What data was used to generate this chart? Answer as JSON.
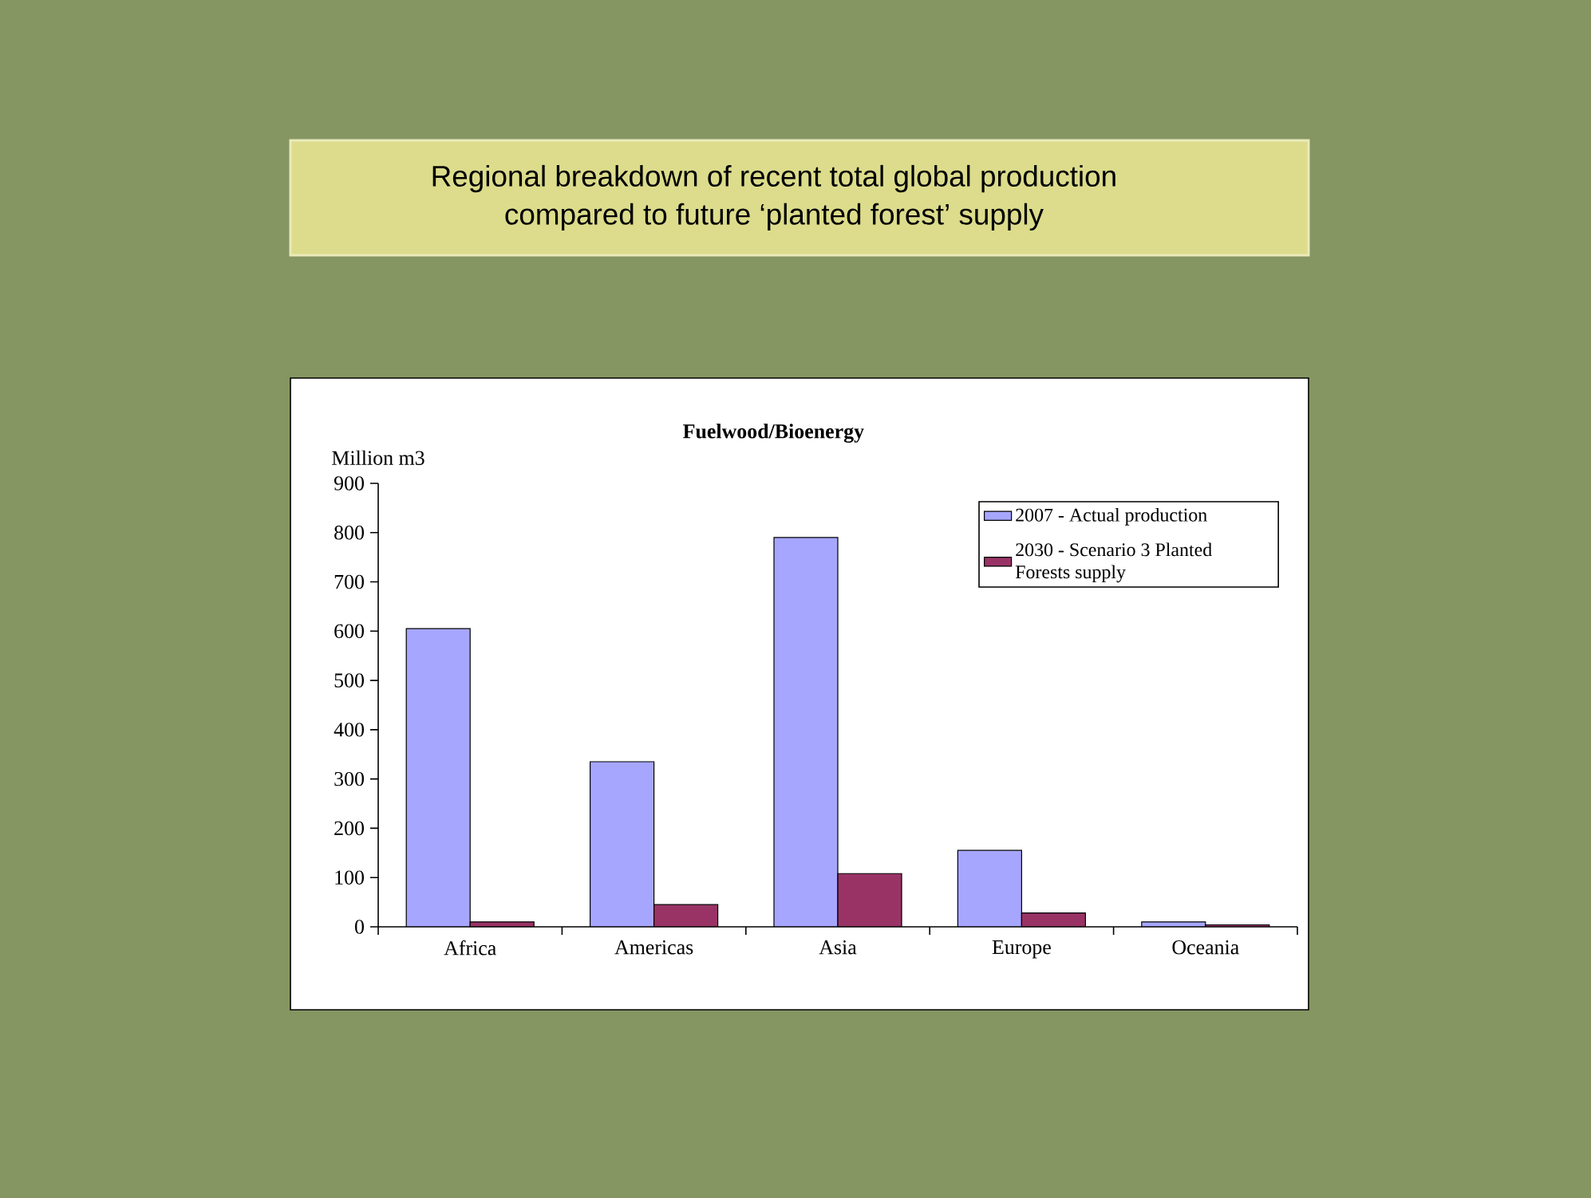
{
  "chart_data": {
    "type": "bar",
    "title": "Regional breakdown of recent total global production compared to future ‘planted forest’ supply",
    "subtitle": "Fuelwood/Bioenergy",
    "ylabel": "Million m3",
    "categories": [
      "Africa",
      "Americas",
      "Asia",
      "Europe",
      "Oceania"
    ],
    "series": [
      {
        "name": "2007 - Actual production",
        "color": "#a6a6ff",
        "values": [
          605,
          335,
          790,
          155,
          10
        ]
      },
      {
        "name": "2030 - Scenario 3 Planted Forests supply",
        "color": "#993366",
        "values": [
          10,
          45,
          108,
          28,
          4
        ]
      }
    ],
    "ylim": [
      0,
      900
    ],
    "yticks": [
      0,
      100,
      200,
      300,
      400,
      500,
      600,
      700,
      800,
      900
    ],
    "legend": "top right"
  }
}
